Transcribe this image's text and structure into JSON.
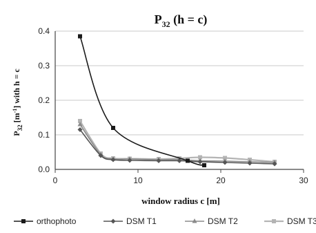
{
  "chart_data": {
    "type": "line",
    "title": "P32 (h = c)",
    "title_main": "P",
    "title_sub": "32",
    "title_rest": " (h = c)",
    "xlabel": "window radius c [m]",
    "ylabel_main": "P",
    "ylabel_sub": "32",
    "ylabel_mid": " [m",
    "ylabel_sup": "-1",
    "ylabel_rest": "] with h = c",
    "xlim": [
      0,
      30
    ],
    "ylim": [
      0,
      0.4
    ],
    "x_ticks": [
      0,
      10,
      20,
      30
    ],
    "y_ticks": [
      0.0,
      0.1,
      0.2,
      0.3,
      0.4
    ],
    "x_tick_labels": [
      "0",
      "10",
      "20",
      "30"
    ],
    "y_tick_labels": [
      "0.0",
      "0.1",
      "0.2",
      "0.3",
      "0.4"
    ],
    "grid": "horizontal",
    "legend_position": "bottom",
    "series": [
      {
        "name": "orthophoto",
        "color": "#1a1a1a",
        "marker": "square",
        "x": [
          3,
          7,
          16,
          18
        ],
        "y": [
          0.385,
          0.12,
          0.025,
          0.012
        ]
      },
      {
        "name": "DSM T1",
        "color": "#555555",
        "marker": "diamond",
        "x": [
          3,
          5.5,
          7,
          9,
          12.5,
          15,
          17.5,
          20.5,
          23.5,
          26.5
        ],
        "y": [
          0.115,
          0.04,
          0.028,
          0.026,
          0.025,
          0.025,
          0.022,
          0.02,
          0.018,
          0.016
        ]
      },
      {
        "name": "DSM T2",
        "color": "#8a8a8a",
        "marker": "triangle",
        "x": [
          3,
          5.5,
          7,
          9,
          12.5,
          15,
          17.5,
          20.5,
          23.5,
          26.5
        ],
        "y": [
          0.13,
          0.043,
          0.03,
          0.03,
          0.028,
          0.028,
          0.025,
          0.024,
          0.022,
          0.02
        ]
      },
      {
        "name": "DSM T3",
        "color": "#b4b4b4",
        "marker": "square",
        "x": [
          3,
          5.5,
          7,
          9,
          12.5,
          15,
          17.5,
          20.5,
          23.5,
          26.5
        ],
        "y": [
          0.14,
          0.046,
          0.032,
          0.031,
          0.03,
          0.032,
          0.035,
          0.033,
          0.028,
          0.022
        ]
      }
    ]
  }
}
